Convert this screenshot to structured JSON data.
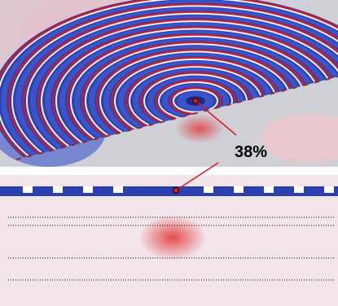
{
  "annotation": "38%"
}
